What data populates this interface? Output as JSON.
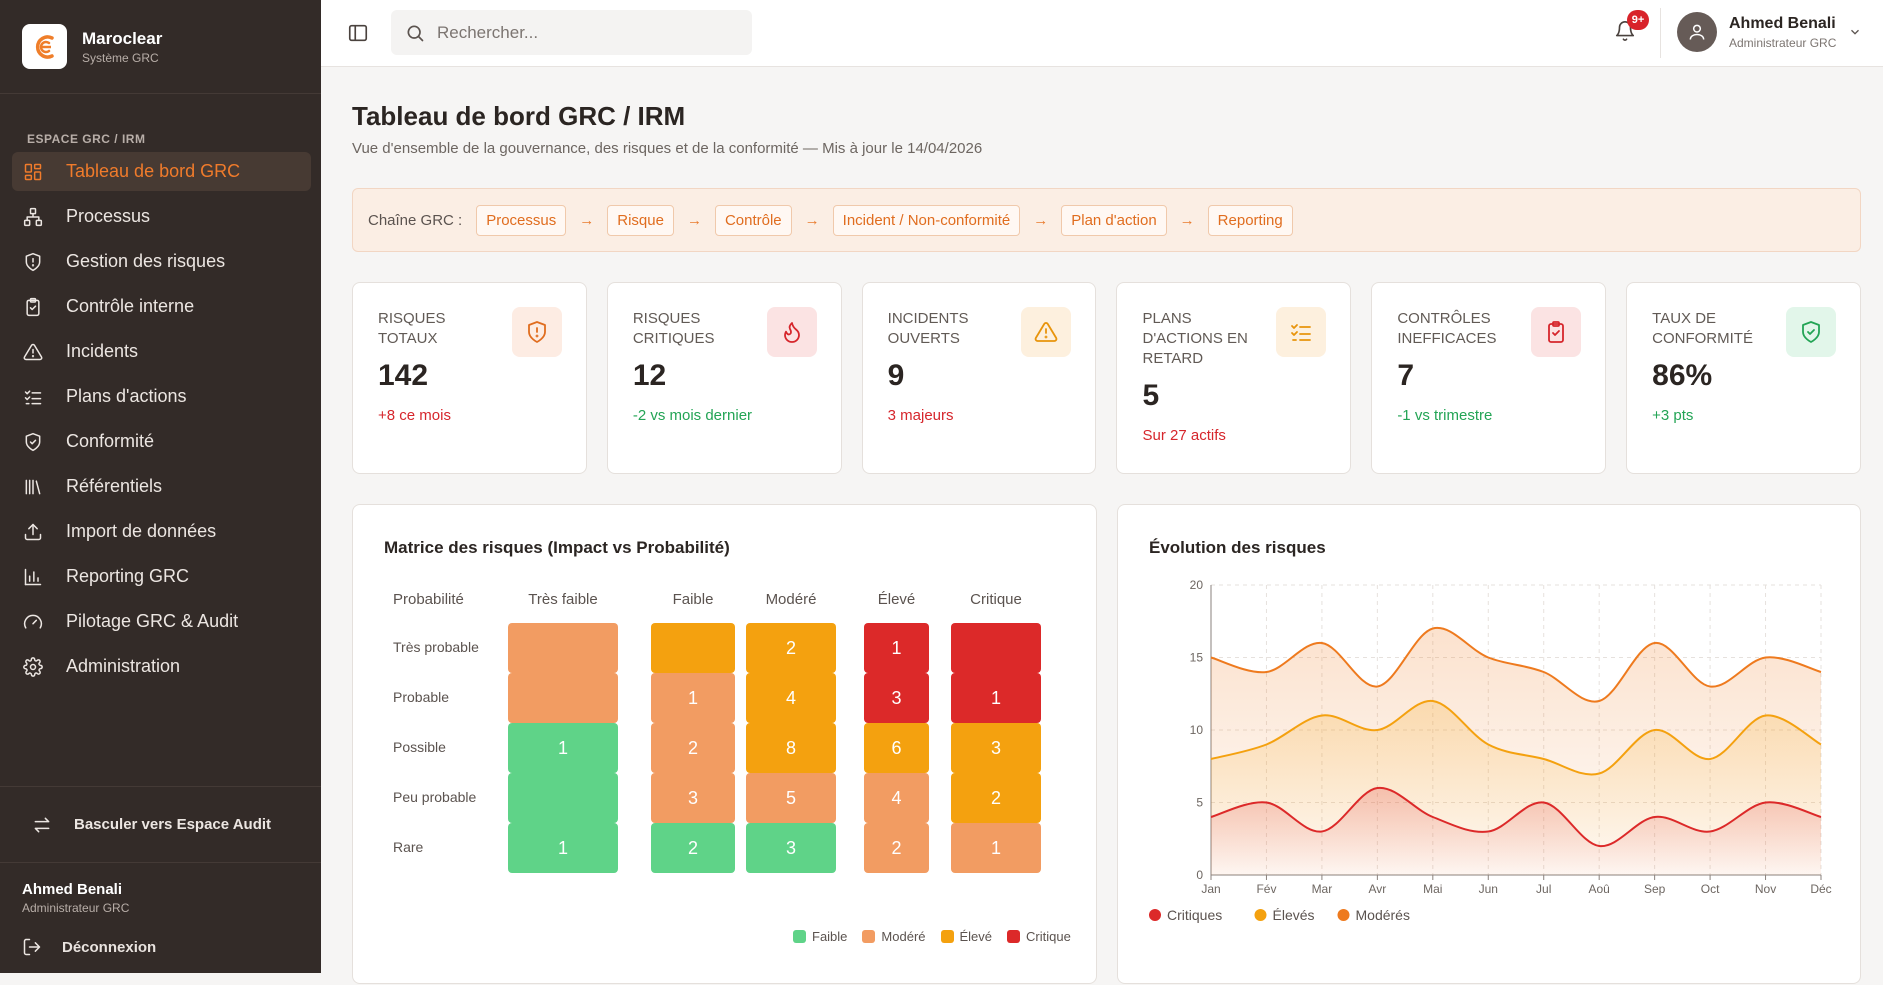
{
  "brand": {
    "name": "Maroclear",
    "subtitle": "Système GRC"
  },
  "sidebar": {
    "section_label": "ESPACE GRC / IRM",
    "items": [
      {
        "label": "Tableau de bord GRC",
        "icon": "dashboard-icon",
        "active": true
      },
      {
        "label": "Processus",
        "icon": "process-icon"
      },
      {
        "label": "Gestion des risques",
        "icon": "shield-icon"
      },
      {
        "label": "Contrôle interne",
        "icon": "clipboard-check-icon"
      },
      {
        "label": "Incidents",
        "icon": "warning-icon"
      },
      {
        "label": "Plans d'actions",
        "icon": "list-check-icon"
      },
      {
        "label": "Conformité",
        "icon": "shield-check-icon"
      },
      {
        "label": "Référentiels",
        "icon": "library-icon"
      },
      {
        "label": "Import de données",
        "icon": "upload-icon"
      },
      {
        "label": "Reporting GRC",
        "icon": "bar-chart-icon"
      },
      {
        "label": "Pilotage GRC & Audit",
        "icon": "gauge-icon"
      },
      {
        "label": "Administration",
        "icon": "gear-icon"
      }
    ],
    "switch_label": "Basculer vers Espace Audit",
    "user_name": "Ahmed Benali",
    "user_role": "Administrateur GRC",
    "logout_label": "Déconnexion"
  },
  "topbar": {
    "search_placeholder": "Rechercher...",
    "notif_badge": "9+",
    "user_name": "Ahmed Benali",
    "user_role": "Administrateur GRC"
  },
  "page": {
    "title": "Tableau de bord GRC / IRM",
    "subtitle": "Vue d'ensemble de la gouvernance, des risques et de la conformité — Mis à jour le 14/04/2026"
  },
  "chain": {
    "label": "Chaîne GRC :",
    "steps": [
      "Processus",
      "Risque",
      "Contrôle",
      "Incident / Non-conformité",
      "Plan d'action",
      "Reporting"
    ]
  },
  "kpis": [
    {
      "label": "RISQUES TOTAUX",
      "value": "142",
      "trend": "+8 ce mois",
      "trend_color": "red",
      "icon": "shield-alert-icon",
      "icon_bg": "#fdece3",
      "icon_color": "#e06d1f"
    },
    {
      "label": "RISQUES CRITIQUES",
      "value": "12",
      "trend": "-2 vs mois dernier",
      "trend_color": "green",
      "icon": "flame-icon",
      "icon_bg": "#fbe3e3",
      "icon_color": "#d6262c"
    },
    {
      "label": "INCIDENTS OUVERTS",
      "value": "9",
      "trend": "3 majeurs",
      "trend_color": "red",
      "icon": "warning-icon",
      "icon_bg": "#fdf0de",
      "icon_color": "#e8940c"
    },
    {
      "label": "PLANS D'ACTIONS EN RETARD",
      "value": "5",
      "trend": "Sur 27 actifs",
      "trend_color": "red",
      "icon": "list-check-icon",
      "icon_bg": "#fdf0de",
      "icon_color": "#e8940c"
    },
    {
      "label": "CONTRÔLES INEFFICACES",
      "value": "7",
      "trend": "-1 vs trimestre",
      "trend_color": "green",
      "icon": "clipboard-x-icon",
      "icon_bg": "#fbe3e3",
      "icon_color": "#d6262c"
    },
    {
      "label": "TAUX DE CONFORMITÉ",
      "value": "86%",
      "trend": "+3 pts",
      "trend_color": "green",
      "icon": "shield-check-icon",
      "icon_bg": "#e2f6ea",
      "icon_color": "#23a455"
    }
  ],
  "matrix": {
    "title": "Matrice des risques (Impact vs Probabilité)",
    "row_header": "Probabilité",
    "columns": [
      "Très faible",
      "Faible",
      "Modéré",
      "Élevé",
      "Critique"
    ],
    "rows": [
      {
        "label": "Très probable",
        "cells": [
          {
            "v": "",
            "c": "mod"
          },
          {
            "v": "",
            "c": "high"
          },
          {
            "v": "2",
            "c": "high"
          },
          {
            "v": "1",
            "c": "crit"
          },
          {
            "v": "",
            "c": "crit"
          }
        ]
      },
      {
        "label": "Probable",
        "cells": [
          {
            "v": "",
            "c": "mod"
          },
          {
            "v": "1",
            "c": "mod"
          },
          {
            "v": "4",
            "c": "high"
          },
          {
            "v": "3",
            "c": "crit"
          },
          {
            "v": "1",
            "c": "crit"
          }
        ]
      },
      {
        "label": "Possible",
        "cells": [
          {
            "v": "1",
            "c": "low"
          },
          {
            "v": "2",
            "c": "mod"
          },
          {
            "v": "8",
            "c": "high"
          },
          {
            "v": "6",
            "c": "high"
          },
          {
            "v": "3",
            "c": "high"
          }
        ]
      },
      {
        "label": "Peu probable",
        "cells": [
          {
            "v": "",
            "c": "low"
          },
          {
            "v": "3",
            "c": "mod"
          },
          {
            "v": "5",
            "c": "mod"
          },
          {
            "v": "4",
            "c": "mod"
          },
          {
            "v": "2",
            "c": "high"
          }
        ]
      },
      {
        "label": "Rare",
        "cells": [
          {
            "v": "1",
            "c": "low"
          },
          {
            "v": "2",
            "c": "low"
          },
          {
            "v": "3",
            "c": "low"
          },
          {
            "v": "2",
            "c": "mod"
          },
          {
            "v": "1",
            "c": "mod"
          }
        ]
      }
    ],
    "legend": [
      {
        "label": "Faible",
        "color": "#5fd388"
      },
      {
        "label": "Modéré",
        "color": "#f29c62"
      },
      {
        "label": "Élevé",
        "color": "#f4a10f"
      },
      {
        "label": "Critique",
        "color": "#dc2929"
      }
    ]
  },
  "chart_data": {
    "type": "area",
    "title": "Évolution des risques",
    "categories": [
      "Jan",
      "Fév",
      "Mar",
      "Avr",
      "Mai",
      "Jun",
      "Jul",
      "Aoû",
      "Sep",
      "Oct",
      "Nov",
      "Déc"
    ],
    "ylim": [
      0,
      20
    ],
    "yticks": [
      0,
      5,
      10,
      15,
      20
    ],
    "grid": true,
    "legend_position": "bottom",
    "series": [
      {
        "name": "Critiques",
        "color": "#dc2929",
        "values": [
          4,
          5,
          3,
          6,
          4,
          3,
          5,
          2,
          4,
          3,
          5,
          4
        ]
      },
      {
        "name": "Élevés",
        "color": "#f4a10f",
        "values": [
          8,
          9,
          11,
          10,
          12,
          9,
          8,
          7,
          10,
          8,
          11,
          9
        ]
      },
      {
        "name": "Modérés",
        "color": "#ee7a1e",
        "values": [
          15,
          14,
          16,
          13,
          17,
          15,
          14,
          12,
          16,
          13,
          15,
          14
        ]
      }
    ]
  }
}
